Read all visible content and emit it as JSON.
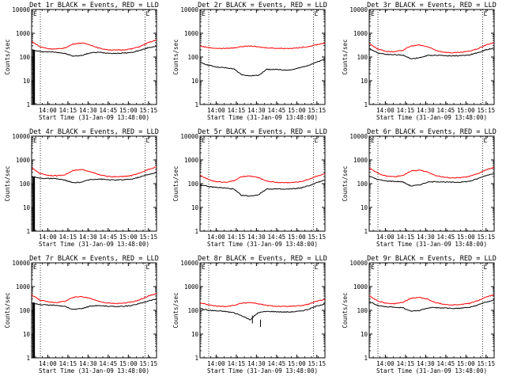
{
  "chart_data": [
    {
      "type": "line",
      "title": "Det 1r BLACK = Events, RED = LLD",
      "ylabel": "Counts/sec",
      "xlabel": "Start Time (31-Jan-09 13:48:00)",
      "yscale": "log",
      "ylim": [
        1,
        10000
      ],
      "yticks": [
        "1",
        "10",
        "100",
        "1000",
        "10000"
      ],
      "xlim_minutes": [
        0,
        93
      ],
      "xticks": [
        "14:00",
        "14:15",
        "14:30",
        "14:45",
        "15:00",
        "15:15"
      ],
      "xtick_minutes": [
        12,
        27,
        42,
        57,
        72,
        87
      ],
      "vlines_minutes": [
        6.5,
        84.5
      ],
      "corner_marks": [
        "E",
        "L"
      ],
      "series": [
        {
          "color": "#000000",
          "values": [
            200,
            170,
            165,
            160,
            140,
            108,
            116,
            148,
            158,
            148,
            142,
            146,
            155,
            190,
            245,
            290
          ]
        },
        {
          "color": "#ff0000",
          "values": [
            460,
            270,
            225,
            215,
            240,
            355,
            390,
            330,
            240,
            205,
            195,
            200,
            220,
            275,
            400,
            520
          ]
        }
      ],
      "notes": "black trace starts with a spike from ~1 to ~200 near start"
    },
    {
      "type": "line",
      "title": "Det 2r BLACK = Events, RED = LLD",
      "ylabel": "Counts/sec",
      "xlabel": "Start Time (31-Jan-09 13:48:00)",
      "yscale": "log",
      "ylim": [
        1,
        10000
      ],
      "yticks": [
        "1",
        "10",
        "100",
        "1000",
        "10000"
      ],
      "xlim_minutes": [
        0,
        93
      ],
      "xticks": [
        "14:00",
        "14:15",
        "14:30",
        "14:45",
        "15:00",
        "15:15"
      ],
      "xtick_minutes": [
        12,
        27,
        42,
        57,
        72,
        87
      ],
      "vlines_minutes": [
        6.5,
        84.5
      ],
      "corner_marks": [
        "E",
        "L"
      ],
      "series": [
        {
          "color": "#000000",
          "values": [
            60,
            45,
            38,
            35,
            32,
            18,
            16,
            17,
            30,
            30,
            28,
            29,
            35,
            45,
            60,
            80
          ]
        },
        {
          "color": "#ff0000",
          "values": [
            290,
            250,
            230,
            230,
            240,
            275,
            290,
            265,
            245,
            235,
            230,
            232,
            245,
            275,
            330,
            390
          ]
        }
      ]
    },
    {
      "type": "line",
      "title": "Det 3r BLACK = Events, RED = LLD",
      "ylabel": "Counts/sec",
      "xlabel": "Start Time (31-Jan-09 13:48:00)",
      "yscale": "log",
      "ylim": [
        1,
        10000
      ],
      "yticks": [
        "1",
        "10",
        "100",
        "1000",
        "10000"
      ],
      "xlim_minutes": [
        0,
        93
      ],
      "xticks": [
        "14:00",
        "14:15",
        "14:30",
        "14:45",
        "15:00",
        "15:15"
      ],
      "xtick_minutes": [
        12,
        27,
        42,
        57,
        72,
        87
      ],
      "vlines_minutes": [
        6.5,
        84.5
      ],
      "corner_marks": [
        "E",
        "L"
      ],
      "series": [
        {
          "color": "#000000",
          "values": [
            230,
            150,
            130,
            125,
            120,
            85,
            92,
            115,
            120,
            115,
            112,
            114,
            122,
            150,
            200,
            240
          ]
        },
        {
          "color": "#ff0000",
          "values": [
            370,
            220,
            175,
            165,
            190,
            290,
            320,
            270,
            190,
            160,
            150,
            155,
            175,
            220,
            320,
            400
          ]
        }
      ]
    },
    {
      "type": "line",
      "title": "Det 4r BLACK = Events, RED = LLD",
      "ylabel": "Counts/sec",
      "xlabel": "Start Time (31-Jan-09 13:48:00)",
      "yscale": "log",
      "ylim": [
        1,
        10000
      ],
      "yticks": [
        "1",
        "10",
        "100",
        "1000",
        "10000"
      ],
      "xlim_minutes": [
        0,
        93
      ],
      "xticks": [
        "14:00",
        "14:15",
        "14:30",
        "14:45",
        "15:00",
        "15:15"
      ],
      "xtick_minutes": [
        12,
        27,
        42,
        57,
        72,
        87
      ],
      "vlines_minutes": [
        6.5,
        84.5
      ],
      "corner_marks": [
        "E",
        "L"
      ],
      "series": [
        {
          "color": "#000000",
          "values": [
            200,
            170,
            165,
            160,
            140,
            108,
            116,
            148,
            158,
            148,
            142,
            146,
            155,
            190,
            245,
            290
          ]
        },
        {
          "color": "#ff0000",
          "values": [
            460,
            270,
            225,
            215,
            240,
            355,
            390,
            330,
            240,
            205,
            195,
            200,
            220,
            275,
            400,
            520
          ]
        }
      ],
      "notes": "black trace starts with a spike from ~1 to ~200 near start"
    },
    {
      "type": "line",
      "title": "Det 5r BLACK = Events, RED = LLD",
      "ylabel": "Counts/sec",
      "xlabel": "Start Time (31-Jan-09 13:48:00)",
      "yscale": "log",
      "ylim": [
        1,
        10000
      ],
      "yticks": [
        "1",
        "10",
        "100",
        "1000",
        "10000"
      ],
      "xlim_minutes": [
        0,
        93
      ],
      "xticks": [
        "14:00",
        "14:15",
        "14:30",
        "14:45",
        "15:00",
        "15:15"
      ],
      "xtick_minutes": [
        12,
        27,
        42,
        57,
        72,
        87
      ],
      "vlines_minutes": [
        6.5,
        84.5
      ],
      "corner_marks": [
        "E",
        "L"
      ],
      "series": [
        {
          "color": "#000000",
          "values": [
            90,
            75,
            70,
            65,
            60,
            32,
            30,
            34,
            60,
            60,
            58,
            60,
            65,
            80,
            110,
            140
          ]
        },
        {
          "color": "#ff0000",
          "values": [
            220,
            150,
            120,
            115,
            130,
            195,
            210,
            180,
            130,
            115,
            110,
            112,
            120,
            150,
            210,
            260
          ]
        }
      ]
    },
    {
      "type": "line",
      "title": "Det 6r BLACK = Events, RED = LLD",
      "ylabel": "Counts/sec",
      "xlabel": "Start Time (31-Jan-09 13:48:00)",
      "yscale": "log",
      "ylim": [
        1,
        10000
      ],
      "yticks": [
        "1",
        "10",
        "100",
        "1000",
        "10000"
      ],
      "xlim_minutes": [
        0,
        93
      ],
      "xticks": [
        "14:00",
        "14:15",
        "14:30",
        "14:45",
        "15:00",
        "15:15"
      ],
      "xtick_minutes": [
        12,
        27,
        42,
        57,
        72,
        87
      ],
      "vlines_minutes": [
        6.5,
        84.5
      ],
      "corner_marks": [
        "E",
        "L"
      ],
      "series": [
        {
          "color": "#000000",
          "values": [
            210,
            150,
            130,
            125,
            120,
            80,
            88,
            115,
            122,
            118,
            114,
            116,
            125,
            160,
            220,
            270
          ]
        },
        {
          "color": "#ff0000",
          "values": [
            450,
            280,
            210,
            195,
            220,
            340,
            370,
            310,
            220,
            185,
            175,
            180,
            200,
            260,
            380,
            480
          ]
        }
      ]
    },
    {
      "type": "line",
      "title": "Det 7r BLACK = Events, RED = LLD",
      "ylabel": "Counts/sec",
      "xlabel": "Start Time (31-Jan-09 13:48:00)",
      "yscale": "log",
      "ylim": [
        1,
        10000
      ],
      "yticks": [
        "1",
        "10",
        "100",
        "1000",
        "10000"
      ],
      "xlim_minutes": [
        0,
        93
      ],
      "xticks": [
        "14:00",
        "14:15",
        "14:30",
        "14:45",
        "15:00",
        "15:15"
      ],
      "xtick_minutes": [
        12,
        27,
        42,
        57,
        72,
        87
      ],
      "vlines_minutes": [
        6.5,
        84.5
      ],
      "corner_marks": [
        "E",
        "L"
      ],
      "series": [
        {
          "color": "#000000",
          "values": [
            210,
            175,
            168,
            162,
            145,
            110,
            118,
            150,
            160,
            150,
            145,
            148,
            158,
            195,
            250,
            300
          ]
        },
        {
          "color": "#ff0000",
          "values": [
            450,
            270,
            225,
            215,
            240,
            350,
            385,
            325,
            240,
            205,
            195,
            200,
            222,
            280,
            400,
            510
          ]
        }
      ],
      "notes": "black trace starts with a spike from ~1 to ~200 near start"
    },
    {
      "type": "line",
      "title": "Det 8r BLACK = Events, RED = LLD",
      "ylabel": "Counts/sec",
      "xlabel": "Start Time (31-Jan-09 13:48:00)",
      "yscale": "log",
      "ylim": [
        1,
        10000
      ],
      "yticks": [
        "1",
        "10",
        "100",
        "1000",
        "10000"
      ],
      "xlim_minutes": [
        0,
        93
      ],
      "xticks": [
        "14:00",
        "14:15",
        "14:30",
        "14:45",
        "15:00",
        "15:15"
      ],
      "xtick_minutes": [
        12,
        27,
        42,
        57,
        72,
        87
      ],
      "vlines_minutes": [
        6.5,
        84.5
      ],
      "corner_marks": [
        "E",
        "L"
      ],
      "series": [
        {
          "color": "#000000",
          "values": [
            120,
            100,
            95,
            90,
            80,
            60,
            40,
            80,
            90,
            88,
            85,
            86,
            92,
            110,
            150,
            190
          ]
        },
        {
          "color": "#ff0000",
          "values": [
            210,
            170,
            150,
            145,
            160,
            200,
            215,
            190,
            160,
            150,
            145,
            148,
            155,
            180,
            240,
            290
          ]
        }
      ],
      "notes": "black trace has downward spikes near 14:27 and 14:33"
    },
    {
      "type": "line",
      "title": "Det 9r BLACK = Events, RED = LLD",
      "ylabel": "Counts/sec",
      "xlabel": "Start Time (31-Jan-09 13:48:00)",
      "yscale": "log",
      "ylim": [
        1,
        10000
      ],
      "yticks": [
        "1",
        "10",
        "100",
        "1000",
        "10000"
      ],
      "xlim_minutes": [
        0,
        93
      ],
      "xticks": [
        "14:00",
        "14:15",
        "14:30",
        "14:45",
        "15:00",
        "15:15"
      ],
      "xtick_minutes": [
        12,
        27,
        42,
        57,
        72,
        87
      ],
      "vlines_minutes": [
        6.5,
        84.5
      ],
      "corner_marks": [
        "E",
        "L"
      ],
      "series": [
        {
          "color": "#000000",
          "values": [
            240,
            160,
            140,
            135,
            130,
            92,
            98,
            125,
            130,
            125,
            120,
            122,
            132,
            165,
            225,
            270
          ]
        },
        {
          "color": "#ff0000",
          "values": [
            420,
            250,
            200,
            190,
            215,
            320,
            350,
            295,
            210,
            180,
            170,
            175,
            195,
            250,
            360,
            450
          ]
        }
      ]
    }
  ]
}
